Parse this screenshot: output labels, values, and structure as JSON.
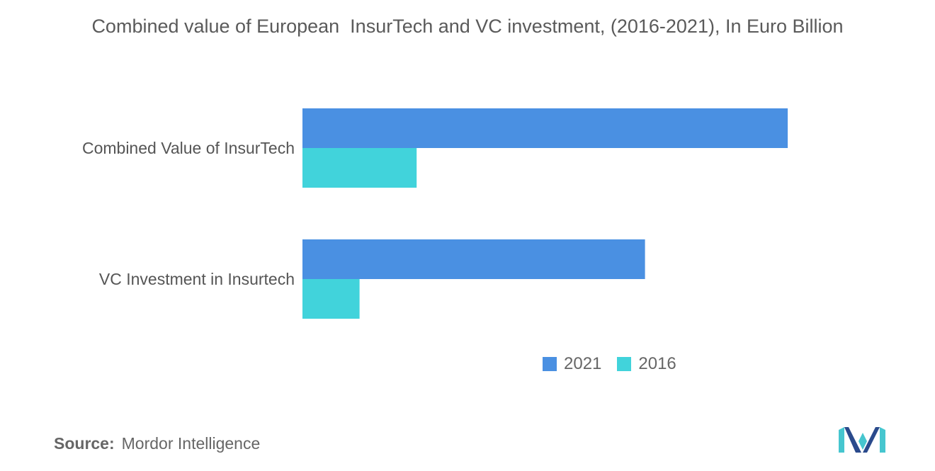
{
  "chart_data": {
    "type": "bar",
    "orientation": "horizontal",
    "title": "Combined value of European  InsurTech and VC investment, (2016-2021), In Euro Billion",
    "categories": [
      "Combined Value of InsurTech",
      "VC Investment in Insurtech"
    ],
    "series": [
      {
        "name": "2021",
        "values": [
          8.5,
          6.0
        ]
      },
      {
        "name": "2016",
        "values": [
          2.0,
          1.0
        ]
      }
    ],
    "xlim": [
      0,
      10
    ],
    "grid": false,
    "legend_position": "bottom",
    "colors": {
      "2021": "#4a90e2",
      "2016": "#41d3db"
    }
  },
  "source": {
    "prefix": "Source:",
    "text": "Mordor Intelligence"
  },
  "logo": {
    "icon": "mordor-intelligence-logo-icon",
    "colors": [
      "#2a4a8c",
      "#46c6cf"
    ]
  }
}
